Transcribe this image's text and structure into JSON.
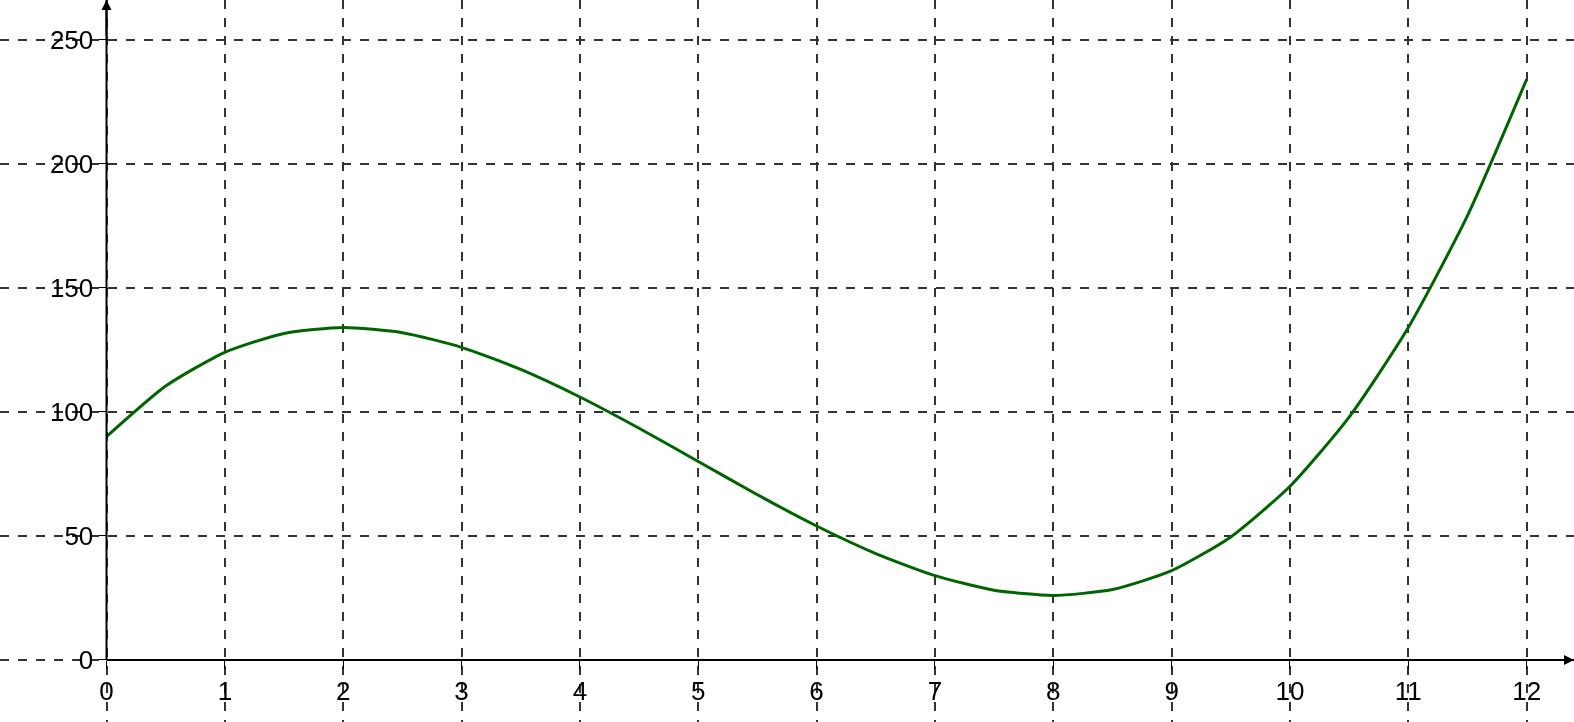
{
  "chart_data": {
    "type": "line",
    "x": [
      0,
      0.5,
      1,
      1.5,
      2,
      2.5,
      3,
      3.5,
      4,
      4.5,
      5,
      5.5,
      6,
      6.5,
      7,
      7.5,
      8,
      8.5,
      9,
      9.5,
      10,
      10.5,
      11,
      11.5,
      12
    ],
    "series": [
      {
        "color": "#006400",
        "values": [
          90,
          110.4,
          124,
          131.6,
          134,
          131.9,
          126,
          117.1,
          106,
          93.4,
          80,
          66.6,
          54,
          42.9,
          34,
          28.1,
          26,
          28.4,
          36,
          49.6,
          70,
          97.9,
          134,
          179.1,
          234
        ]
      }
    ],
    "xlim": [
      -0.9,
      12.4
    ],
    "ylim": [
      -25,
      266
    ],
    "xticks": [
      0,
      1,
      2,
      3,
      4,
      5,
      6,
      7,
      8,
      9,
      10,
      11,
      12
    ],
    "yticks": [
      0,
      50,
      100,
      150,
      200,
      250
    ],
    "grid": true,
    "marker": "none",
    "line_style": "solid"
  }
}
